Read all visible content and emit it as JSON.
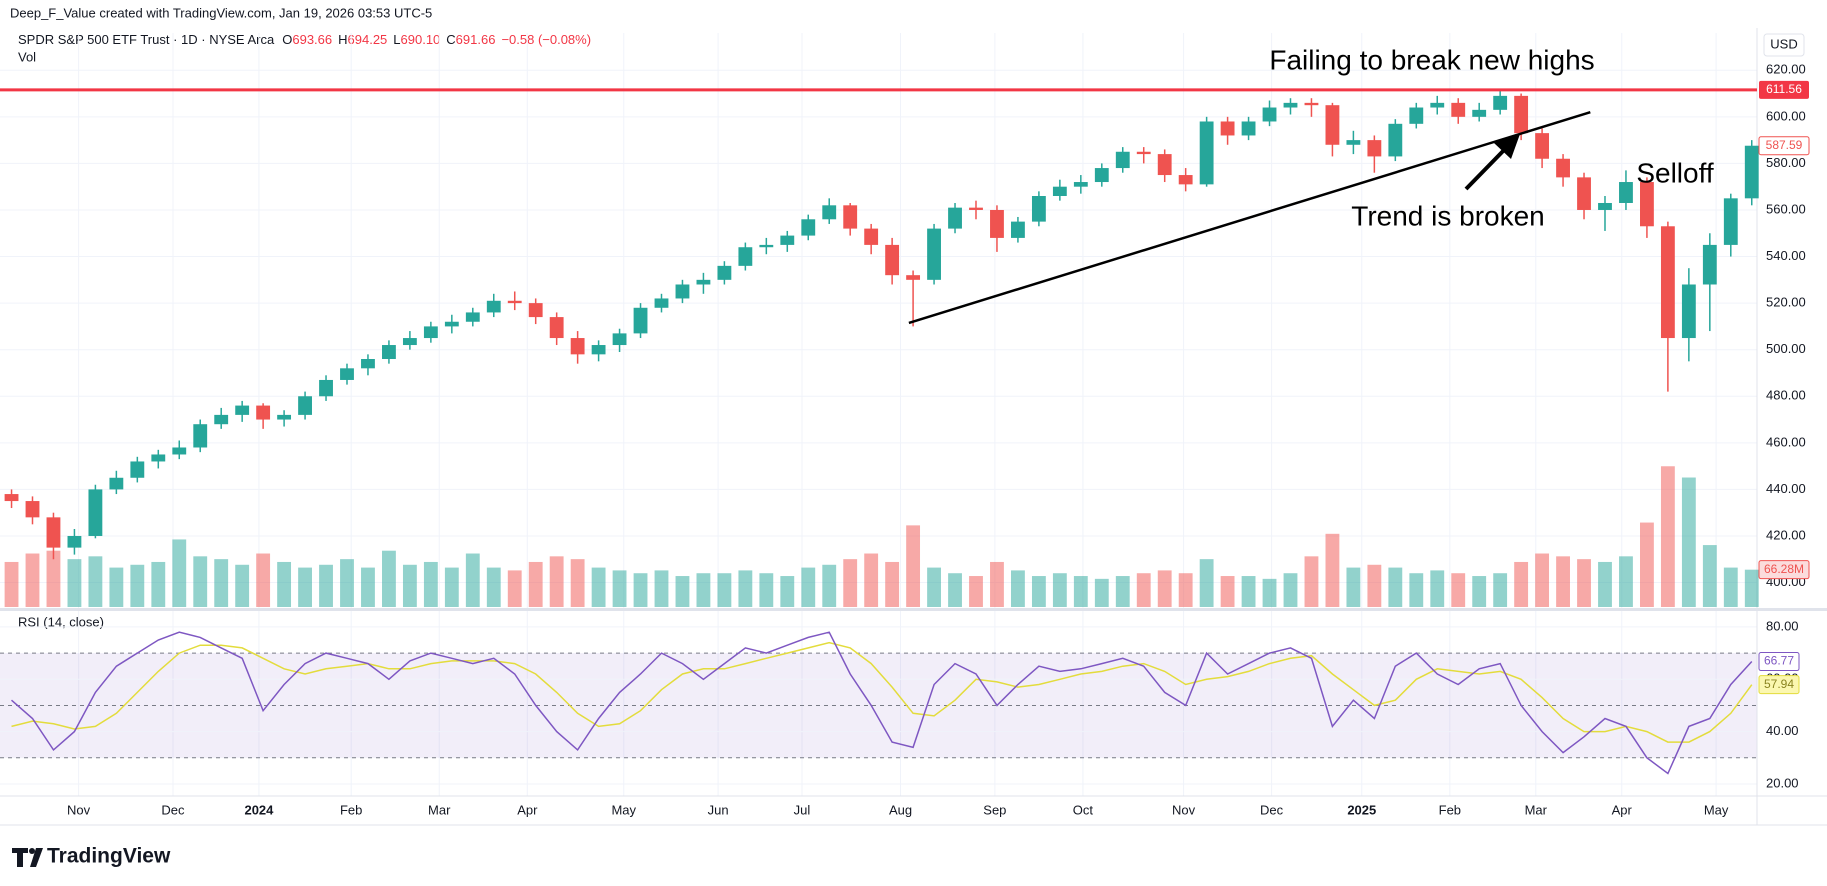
{
  "header": {
    "credit": "Deep_F_Value created with TradingView.com, Jan 19, 2026 03:53 UTC-5",
    "symbol": "SPDR S&P 500 ETF Trust · 1D · NYSE Arca",
    "quote": [
      {
        "k": "O",
        "v": "693.66"
      },
      {
        "k": "H",
        "v": "694.25"
      },
      {
        "k": "L",
        "v": "690.10"
      },
      {
        "k": "C",
        "v": "691.66"
      }
    ],
    "change": "−0.58 (−0.08%)"
  },
  "brand": "TradingView",
  "chart_data": {
    "type": "candlestick",
    "currency": "USD",
    "open": [
      438,
      435,
      428,
      415,
      420,
      440,
      445,
      452,
      455,
      458,
      468,
      472,
      476,
      470,
      472,
      480,
      487,
      492,
      496,
      502,
      505,
      510,
      512,
      516,
      521,
      520,
      514,
      505,
      498,
      502,
      507,
      518,
      522,
      528,
      530,
      536,
      544,
      545,
      549,
      556,
      562,
      552,
      545,
      532,
      530,
      552,
      561,
      560,
      548,
      555,
      566,
      570,
      572,
      578,
      585,
      584,
      575,
      571,
      598,
      592,
      598,
      604,
      606,
      605,
      588,
      590,
      583,
      597,
      604,
      606,
      600,
      603,
      609,
      593,
      582,
      574,
      560,
      563,
      572,
      553,
      505,
      528,
      545,
      565
    ],
    "high": [
      440,
      437,
      430,
      423,
      442,
      448,
      454,
      457,
      461,
      470,
      475,
      478,
      477,
      474,
      482,
      489,
      494,
      498,
      504,
      508,
      512,
      515,
      518,
      524,
      525,
      522,
      516,
      508,
      504,
      509,
      520,
      524,
      530,
      533,
      538,
      546,
      548,
      551,
      558,
      565,
      563,
      554,
      548,
      534,
      554,
      563,
      564,
      562,
      557,
      568,
      573,
      575,
      580,
      587,
      587,
      586,
      578,
      600,
      600,
      600,
      607,
      608,
      608,
      606,
      594,
      592,
      599,
      606,
      609,
      608,
      606,
      612,
      610,
      595,
      584,
      576,
      566,
      577,
      574,
      555,
      535,
      550,
      567,
      590
    ],
    "low": [
      432,
      425,
      410,
      412,
      419,
      438,
      443,
      449,
      453,
      456,
      466,
      469,
      466,
      467,
      470,
      478,
      485,
      489,
      494,
      500,
      503,
      507,
      510,
      514,
      517,
      511,
      502,
      494,
      495,
      499,
      505,
      516,
      520,
      524,
      528,
      534,
      541,
      542,
      547,
      554,
      549,
      541,
      528,
      510,
      528,
      550,
      556,
      542,
      546,
      553,
      564,
      567,
      570,
      576,
      580,
      572,
      568,
      570,
      588,
      590,
      596,
      601,
      600,
      583,
      584,
      576,
      581,
      595,
      601,
      597,
      598,
      601,
      590,
      578,
      570,
      556,
      551,
      560,
      548,
      482,
      495,
      508,
      540,
      562
    ],
    "close": [
      435,
      428,
      415,
      420,
      440,
      445,
      452,
      455,
      458,
      468,
      472,
      476,
      470,
      472,
      480,
      487,
      492,
      496,
      502,
      505,
      510,
      512,
      516,
      521,
      520,
      514,
      505,
      498,
      502,
      507,
      518,
      522,
      528,
      530,
      536,
      544,
      545,
      549,
      556,
      562,
      552,
      545,
      532,
      530,
      552,
      561,
      560,
      548,
      555,
      566,
      570,
      572,
      578,
      585,
      584,
      575,
      571,
      598,
      592,
      598,
      604,
      606,
      605,
      588,
      590,
      583,
      597,
      604,
      606,
      600,
      603,
      609,
      593,
      582,
      574,
      560,
      563,
      572,
      553,
      505,
      528,
      545,
      565,
      587.59
    ],
    "colors": {
      "up": "#26a69a",
      "down": "#ef5350"
    },
    "xlim": [
      -0.55,
      83.25
    ],
    "xticks": [
      {
        "value": 3.2,
        "label": "Nov"
      },
      {
        "value": 7.7,
        "label": "Dec"
      },
      {
        "value": 11.8,
        "label": "2024",
        "major": true
      },
      {
        "value": 16.2,
        "label": "Feb"
      },
      {
        "value": 20.4,
        "label": "Mar"
      },
      {
        "value": 24.6,
        "label": "Apr"
      },
      {
        "value": 29.2,
        "label": "May"
      },
      {
        "value": 33.7,
        "label": "Jun"
      },
      {
        "value": 37.7,
        "label": "Jul"
      },
      {
        "value": 42.4,
        "label": "Aug"
      },
      {
        "value": 46.9,
        "label": "Sep"
      },
      {
        "value": 51.1,
        "label": "Oct"
      },
      {
        "value": 55.9,
        "label": "Nov"
      },
      {
        "value": 60.1,
        "label": "Dec"
      },
      {
        "value": 64.4,
        "label": "2025",
        "major": true
      },
      {
        "value": 68.6,
        "label": "Feb"
      },
      {
        "value": 72.7,
        "label": "Mar"
      },
      {
        "value": 76.8,
        "label": "Apr"
      },
      {
        "value": 81.3,
        "label": "May"
      }
    ],
    "ylim": [
      389.5,
      636
    ],
    "yticks": [
      {
        "value": 400,
        "label": "400.00"
      },
      {
        "value": 420,
        "label": "420.00"
      },
      {
        "value": 440,
        "label": "440.00"
      },
      {
        "value": 460,
        "label": "460.00"
      },
      {
        "value": 480,
        "label": "480.00"
      },
      {
        "value": 500,
        "label": "500.00"
      },
      {
        "value": 520,
        "label": "520.00"
      },
      {
        "value": 540,
        "label": "540.00"
      },
      {
        "value": 560,
        "label": "560.00"
      },
      {
        "value": 580,
        "label": "580.00"
      },
      {
        "value": 600,
        "label": "600.00"
      },
      {
        "value": 620,
        "label": "620.00"
      }
    ],
    "grid": true,
    "resistance": {
      "value": 611.56,
      "color": "#f23645"
    },
    "trendline": {
      "x": [
        42.8,
        75.3
      ],
      "y": [
        511.5,
        602
      ]
    },
    "annotations": [
      "Failing to break new highs",
      "Trend is broken",
      "Selloff"
    ],
    "volume": {
      "name": "Vol",
      "ylim": [
        0,
        270
      ],
      "last_label": "66.28M",
      "values": [
        80,
        95,
        100,
        85,
        90,
        70,
        75,
        80,
        120,
        90,
        85,
        75,
        95,
        80,
        70,
        75,
        85,
        70,
        100,
        75,
        80,
        70,
        95,
        70,
        65,
        80,
        90,
        85,
        70,
        65,
        60,
        65,
        55,
        60,
        60,
        65,
        60,
        55,
        70,
        75,
        85,
        95,
        80,
        145,
        70,
        60,
        55,
        80,
        65,
        55,
        60,
        55,
        50,
        55,
        60,
        65,
        60,
        85,
        55,
        55,
        50,
        60,
        90,
        130,
        70,
        75,
        70,
        60,
        65,
        60,
        55,
        60,
        80,
        95,
        90,
        85,
        80,
        90,
        150,
        250,
        230,
        110,
        70,
        66.28
      ]
    },
    "rsi": {
      "name": "RSI (14, close)",
      "color": "#7e57c2",
      "ma_color": "#e3dc3c",
      "ylim": [
        15.4,
        85.7
      ],
      "yticks": [
        {
          "value": 20,
          "label": "20.00"
        },
        {
          "value": 40,
          "label": "40.00"
        },
        {
          "value": 60,
          "label": "60.00"
        },
        {
          "value": 80,
          "label": "80.00"
        }
      ],
      "levels": [
        70,
        50,
        30
      ],
      "values": [
        52,
        45,
        33,
        40,
        55,
        65,
        70,
        75,
        78,
        76,
        72,
        68,
        48,
        58,
        66,
        70,
        68,
        66,
        60,
        67,
        70,
        68,
        66,
        68,
        62,
        50,
        40,
        33,
        45,
        55,
        62,
        70,
        66,
        60,
        66,
        72,
        70,
        73,
        76,
        78,
        62,
        50,
        36,
        34,
        58,
        66,
        62,
        50,
        58,
        65,
        63,
        64,
        66,
        68,
        65,
        55,
        50,
        70,
        62,
        66,
        70,
        72,
        68,
        42,
        52,
        45,
        65,
        70,
        62,
        58,
        64,
        66,
        50,
        40,
        32,
        38,
        45,
        42,
        30,
        24,
        42,
        45,
        58,
        66.77
      ],
      "ma": [
        42,
        44,
        43,
        41,
        42,
        47,
        55,
        63,
        70,
        73,
        73,
        72,
        68,
        64,
        62,
        64,
        65,
        66,
        64,
        64,
        66,
        67,
        67,
        67,
        66,
        62,
        55,
        47,
        42,
        43,
        48,
        56,
        62,
        64,
        64,
        66,
        68,
        70,
        72,
        74,
        72,
        66,
        57,
        47,
        46,
        52,
        60,
        59,
        57,
        58,
        60,
        62,
        63,
        65,
        66,
        63,
        58,
        60,
        61,
        63,
        66,
        68,
        69,
        62,
        56,
        50,
        52,
        60,
        64,
        63,
        62,
        63,
        60,
        53,
        45,
        40,
        40,
        42,
        40,
        36,
        36,
        40,
        47,
        57.94
      ]
    }
  }
}
